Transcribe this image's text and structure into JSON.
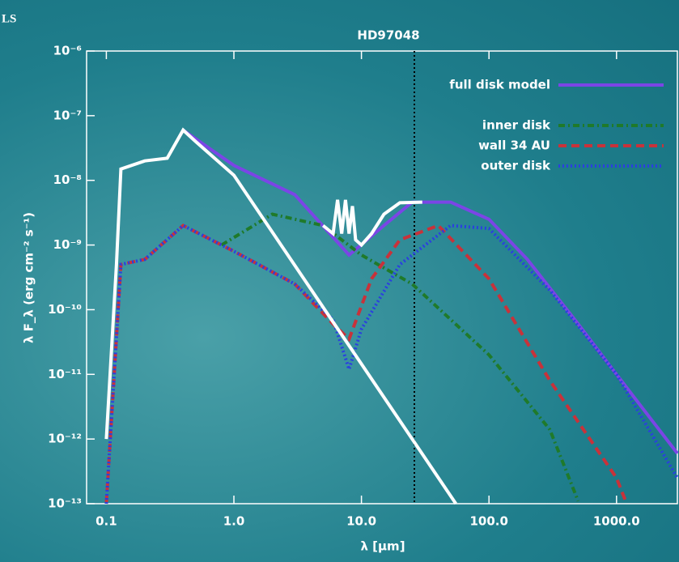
{
  "banner": "LS",
  "chart_data": {
    "type": "line",
    "title": "HD97048",
    "x_label": "λ [µm]",
    "y_label": "λ F_λ (erg cm⁻² s⁻¹)",
    "log_x": true,
    "log_y": true,
    "xlim": [
      0.07,
      3000
    ],
    "ylim": [
      1e-13,
      1e-06
    ],
    "xticks": [
      0.1,
      {
        "value": 1,
        "label": "1.0"
      },
      {
        "value": 10,
        "label": "10.0"
      },
      {
        "value": 100,
        "label": "100.0"
      },
      {
        "value": 1000,
        "label": "1000.0"
      }
    ],
    "yticks": [
      {
        "value": 1e-13,
        "label": "10⁻¹³"
      },
      {
        "value": 1e-12,
        "label": "10⁻¹²"
      },
      {
        "value": 1e-11,
        "label": "10⁻¹¹"
      },
      {
        "value": 1e-10,
        "label": "10⁻¹⁰"
      },
      {
        "value": 1e-09,
        "label": "10⁻⁹"
      },
      {
        "value": 1e-08,
        "label": "10⁻⁸"
      },
      {
        "value": 1e-07,
        "label": "10⁻⁷"
      },
      {
        "value": 1e-06,
        "label": "10⁻⁶"
      }
    ],
    "vline": 26,
    "series": [
      {
        "name": "full disk model",
        "color": "#7b45e6",
        "dash": "solid",
        "x": [
          0.4,
          1,
          3,
          8,
          15,
          25,
          50,
          100,
          200,
          500,
          1000,
          3000
        ],
        "values": [
          6e-08,
          1.7e-08,
          6e-09,
          7e-10,
          2e-09,
          4.6e-09,
          4.6e-09,
          2.5e-09,
          6e-10,
          6e-11,
          1e-11,
          6e-13
        ]
      },
      {
        "name": "inner disk",
        "color": "#1f7a2a",
        "dash": "dashdot",
        "x": [
          0.8,
          2,
          5,
          10,
          25,
          100,
          300,
          500
        ],
        "values": [
          1e-09,
          3e-09,
          2e-09,
          7e-10,
          2.5e-10,
          2e-11,
          1.4e-12,
          1.1e-13
        ]
      },
      {
        "name": "wall 34 AU",
        "color": "#c8323a",
        "dash": "dashed",
        "x": [
          0.1,
          0.13,
          0.2,
          0.4,
          1,
          3,
          6,
          8,
          12,
          20,
          40,
          100,
          300,
          1000,
          1200
        ],
        "values": [
          1e-13,
          5e-10,
          6e-10,
          2e-09,
          8e-10,
          2.5e-10,
          6e-11,
          3.5e-11,
          3e-10,
          1.2e-09,
          2e-09,
          3e-10,
          8e-12,
          2.5e-13,
          1e-13
        ]
      },
      {
        "name": "outer disk",
        "color": "#2a3fe0",
        "dash": "dotted",
        "x": [
          0.1,
          0.13,
          0.2,
          0.4,
          1,
          3,
          6,
          8,
          10,
          20,
          50,
          100,
          300,
          1000,
          3000
        ],
        "values": [
          1e-13,
          5e-10,
          6e-10,
          2e-09,
          8e-10,
          2.5e-10,
          7e-11,
          1.2e-11,
          5e-11,
          5e-10,
          2e-09,
          1.8e-09,
          2e-10,
          1e-11,
          2.5e-13
        ]
      },
      {
        "color": "#ffffff",
        "dash": "solid",
        "x": [
          0.1,
          0.12,
          0.13,
          0.2,
          0.3,
          0.4,
          0.5,
          1,
          55
        ],
        "values": [
          1e-12,
          5e-10,
          1.5e-08,
          2e-08,
          2.2e-08,
          6e-08,
          4e-08,
          1.2e-08,
          1e-13
        ]
      },
      {
        "color": "#ffffff",
        "dash": "solid",
        "x": [
          5,
          6,
          6.5,
          7,
          7.5,
          8,
          8.5,
          9,
          10,
          12,
          15,
          20,
          30
        ],
        "values": [
          2e-09,
          1.5e-09,
          5e-09,
          1.5e-09,
          5e-09,
          1.5e-09,
          4e-09,
          1.2e-09,
          1e-09,
          1.5e-09,
          3e-09,
          4.5e-09,
          4.6e-09
        ]
      }
    ]
  }
}
